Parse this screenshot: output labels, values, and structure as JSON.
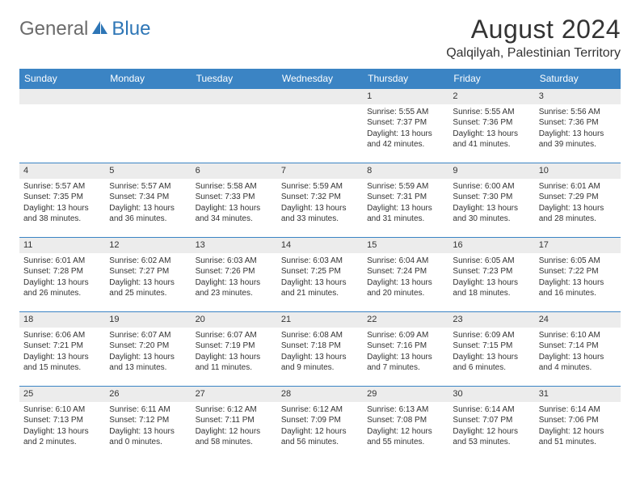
{
  "logo": {
    "part1": "General",
    "part2": "Blue"
  },
  "title": "August 2024",
  "location": "Qalqilyah, Palestinian Territory",
  "colors": {
    "header_bg": "#3b84c4",
    "header_text": "#ffffff",
    "daynum_bg": "#ececec",
    "border": "#3b84c4",
    "logo_gray": "#6b6b6b",
    "logo_blue": "#2e76b6"
  },
  "weekdays": [
    "Sunday",
    "Monday",
    "Tuesday",
    "Wednesday",
    "Thursday",
    "Friday",
    "Saturday"
  ],
  "weeks": [
    [
      null,
      null,
      null,
      null,
      {
        "d": "1",
        "sr": "Sunrise: 5:55 AM",
        "ss": "Sunset: 7:37 PM",
        "dl1": "Daylight: 13 hours",
        "dl2": "and 42 minutes."
      },
      {
        "d": "2",
        "sr": "Sunrise: 5:55 AM",
        "ss": "Sunset: 7:36 PM",
        "dl1": "Daylight: 13 hours",
        "dl2": "and 41 minutes."
      },
      {
        "d": "3",
        "sr": "Sunrise: 5:56 AM",
        "ss": "Sunset: 7:36 PM",
        "dl1": "Daylight: 13 hours",
        "dl2": "and 39 minutes."
      }
    ],
    [
      {
        "d": "4",
        "sr": "Sunrise: 5:57 AM",
        "ss": "Sunset: 7:35 PM",
        "dl1": "Daylight: 13 hours",
        "dl2": "and 38 minutes."
      },
      {
        "d": "5",
        "sr": "Sunrise: 5:57 AM",
        "ss": "Sunset: 7:34 PM",
        "dl1": "Daylight: 13 hours",
        "dl2": "and 36 minutes."
      },
      {
        "d": "6",
        "sr": "Sunrise: 5:58 AM",
        "ss": "Sunset: 7:33 PM",
        "dl1": "Daylight: 13 hours",
        "dl2": "and 34 minutes."
      },
      {
        "d": "7",
        "sr": "Sunrise: 5:59 AM",
        "ss": "Sunset: 7:32 PM",
        "dl1": "Daylight: 13 hours",
        "dl2": "and 33 minutes."
      },
      {
        "d": "8",
        "sr": "Sunrise: 5:59 AM",
        "ss": "Sunset: 7:31 PM",
        "dl1": "Daylight: 13 hours",
        "dl2": "and 31 minutes."
      },
      {
        "d": "9",
        "sr": "Sunrise: 6:00 AM",
        "ss": "Sunset: 7:30 PM",
        "dl1": "Daylight: 13 hours",
        "dl2": "and 30 minutes."
      },
      {
        "d": "10",
        "sr": "Sunrise: 6:01 AM",
        "ss": "Sunset: 7:29 PM",
        "dl1": "Daylight: 13 hours",
        "dl2": "and 28 minutes."
      }
    ],
    [
      {
        "d": "11",
        "sr": "Sunrise: 6:01 AM",
        "ss": "Sunset: 7:28 PM",
        "dl1": "Daylight: 13 hours",
        "dl2": "and 26 minutes."
      },
      {
        "d": "12",
        "sr": "Sunrise: 6:02 AM",
        "ss": "Sunset: 7:27 PM",
        "dl1": "Daylight: 13 hours",
        "dl2": "and 25 minutes."
      },
      {
        "d": "13",
        "sr": "Sunrise: 6:03 AM",
        "ss": "Sunset: 7:26 PM",
        "dl1": "Daylight: 13 hours",
        "dl2": "and 23 minutes."
      },
      {
        "d": "14",
        "sr": "Sunrise: 6:03 AM",
        "ss": "Sunset: 7:25 PM",
        "dl1": "Daylight: 13 hours",
        "dl2": "and 21 minutes."
      },
      {
        "d": "15",
        "sr": "Sunrise: 6:04 AM",
        "ss": "Sunset: 7:24 PM",
        "dl1": "Daylight: 13 hours",
        "dl2": "and 20 minutes."
      },
      {
        "d": "16",
        "sr": "Sunrise: 6:05 AM",
        "ss": "Sunset: 7:23 PM",
        "dl1": "Daylight: 13 hours",
        "dl2": "and 18 minutes."
      },
      {
        "d": "17",
        "sr": "Sunrise: 6:05 AM",
        "ss": "Sunset: 7:22 PM",
        "dl1": "Daylight: 13 hours",
        "dl2": "and 16 minutes."
      }
    ],
    [
      {
        "d": "18",
        "sr": "Sunrise: 6:06 AM",
        "ss": "Sunset: 7:21 PM",
        "dl1": "Daylight: 13 hours",
        "dl2": "and 15 minutes."
      },
      {
        "d": "19",
        "sr": "Sunrise: 6:07 AM",
        "ss": "Sunset: 7:20 PM",
        "dl1": "Daylight: 13 hours",
        "dl2": "and 13 minutes."
      },
      {
        "d": "20",
        "sr": "Sunrise: 6:07 AM",
        "ss": "Sunset: 7:19 PM",
        "dl1": "Daylight: 13 hours",
        "dl2": "and 11 minutes."
      },
      {
        "d": "21",
        "sr": "Sunrise: 6:08 AM",
        "ss": "Sunset: 7:18 PM",
        "dl1": "Daylight: 13 hours",
        "dl2": "and 9 minutes."
      },
      {
        "d": "22",
        "sr": "Sunrise: 6:09 AM",
        "ss": "Sunset: 7:16 PM",
        "dl1": "Daylight: 13 hours",
        "dl2": "and 7 minutes."
      },
      {
        "d": "23",
        "sr": "Sunrise: 6:09 AM",
        "ss": "Sunset: 7:15 PM",
        "dl1": "Daylight: 13 hours",
        "dl2": "and 6 minutes."
      },
      {
        "d": "24",
        "sr": "Sunrise: 6:10 AM",
        "ss": "Sunset: 7:14 PM",
        "dl1": "Daylight: 13 hours",
        "dl2": "and 4 minutes."
      }
    ],
    [
      {
        "d": "25",
        "sr": "Sunrise: 6:10 AM",
        "ss": "Sunset: 7:13 PM",
        "dl1": "Daylight: 13 hours",
        "dl2": "and 2 minutes."
      },
      {
        "d": "26",
        "sr": "Sunrise: 6:11 AM",
        "ss": "Sunset: 7:12 PM",
        "dl1": "Daylight: 13 hours",
        "dl2": "and 0 minutes."
      },
      {
        "d": "27",
        "sr": "Sunrise: 6:12 AM",
        "ss": "Sunset: 7:11 PM",
        "dl1": "Daylight: 12 hours",
        "dl2": "and 58 minutes."
      },
      {
        "d": "28",
        "sr": "Sunrise: 6:12 AM",
        "ss": "Sunset: 7:09 PM",
        "dl1": "Daylight: 12 hours",
        "dl2": "and 56 minutes."
      },
      {
        "d": "29",
        "sr": "Sunrise: 6:13 AM",
        "ss": "Sunset: 7:08 PM",
        "dl1": "Daylight: 12 hours",
        "dl2": "and 55 minutes."
      },
      {
        "d": "30",
        "sr": "Sunrise: 6:14 AM",
        "ss": "Sunset: 7:07 PM",
        "dl1": "Daylight: 12 hours",
        "dl2": "and 53 minutes."
      },
      {
        "d": "31",
        "sr": "Sunrise: 6:14 AM",
        "ss": "Sunset: 7:06 PM",
        "dl1": "Daylight: 12 hours",
        "dl2": "and 51 minutes."
      }
    ]
  ]
}
